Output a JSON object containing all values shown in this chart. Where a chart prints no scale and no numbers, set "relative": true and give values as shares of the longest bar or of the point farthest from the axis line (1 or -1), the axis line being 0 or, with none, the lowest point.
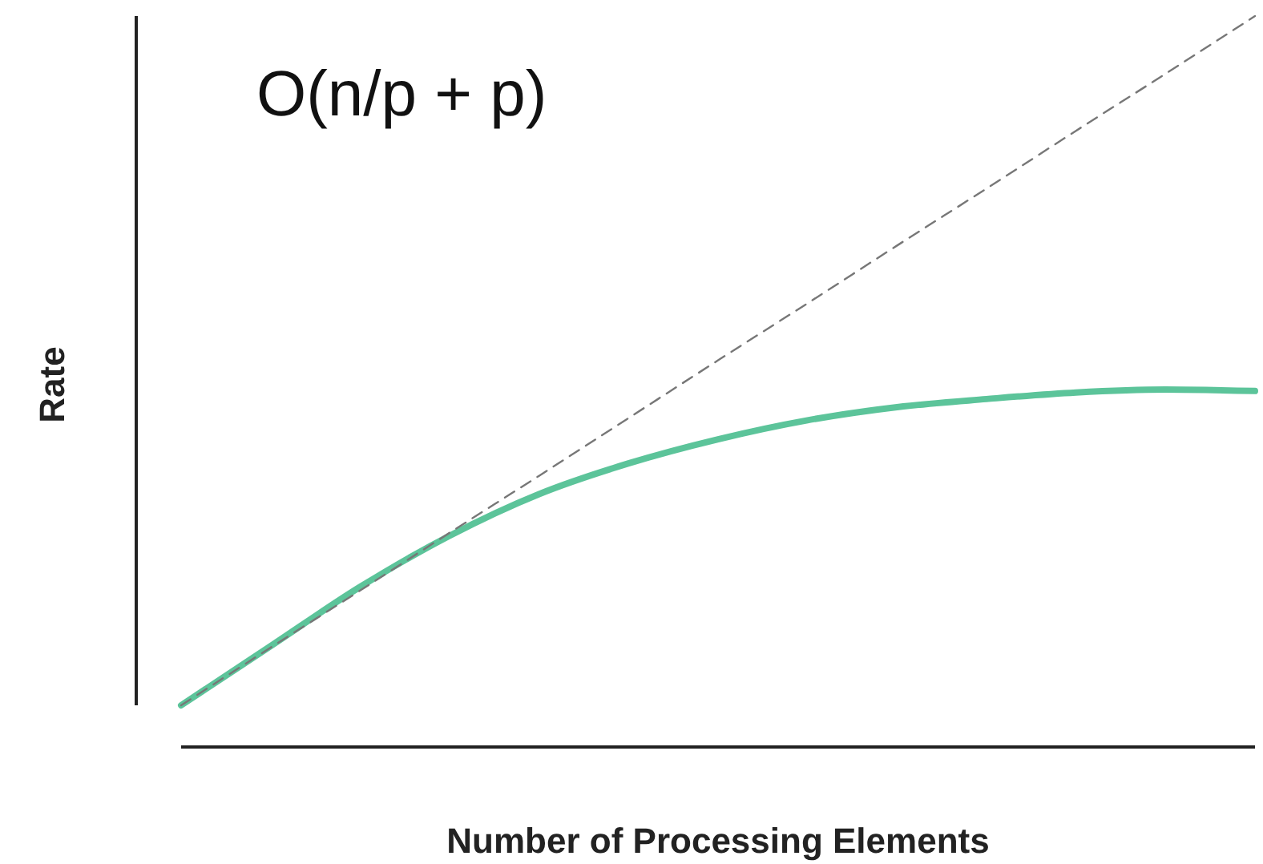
{
  "chart_data": {
    "type": "line",
    "title": "O(n/p + p)",
    "xlabel": "Number of Processing Elements",
    "ylabel": "Rate",
    "relative": true,
    "categories": [
      null,
      null,
      null,
      null,
      null,
      null,
      null,
      null,
      null,
      null,
      null,
      null,
      null
    ],
    "series": [
      {
        "color": "#777777",
        "line_style": "dashed",
        "values": [
          0.057,
          0.136,
          0.214,
          0.293,
          0.371,
          0.45,
          0.529,
          0.607,
          0.686,
          0.764,
          0.843,
          0.921,
          1.0
        ]
      },
      {
        "color": "#5cc49a",
        "line_style": "solid",
        "values": [
          0.057,
          0.138,
          0.219,
          0.289,
          0.346,
          0.388,
          0.421,
          0.447,
          0.465,
          0.476,
          0.485,
          0.489,
          0.487
        ]
      }
    ]
  }
}
